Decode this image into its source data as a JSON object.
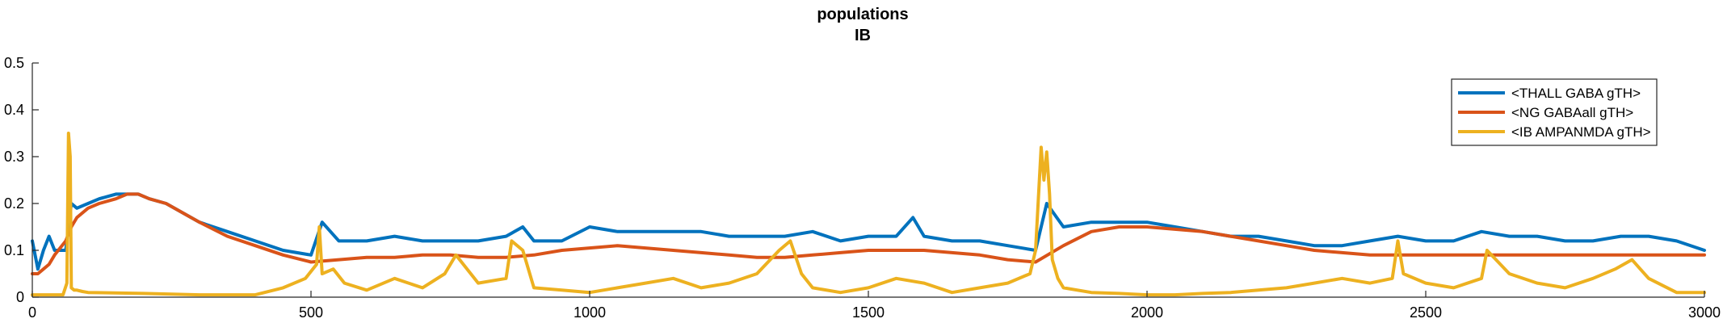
{
  "chart_data": {
    "type": "line",
    "title": "populations",
    "subtitle": "IB",
    "xlabel": "",
    "ylabel": "",
    "xlim": [
      0,
      3000
    ],
    "ylim": [
      0,
      0.5
    ],
    "xticks": [
      0,
      500,
      1000,
      1500,
      2000,
      2500,
      3000
    ],
    "xtick_labels": [
      "0",
      "500",
      "1000",
      "1500",
      "2000",
      "2500",
      "3000"
    ],
    "yticks": [
      0,
      0.1,
      0.2,
      0.3,
      0.4,
      0.5
    ],
    "ytick_labels": [
      "0",
      "0.1",
      "0.2",
      "0.3",
      "0.4",
      "0.5"
    ],
    "grid": false,
    "legend_position": "top-right",
    "series": [
      {
        "name": "<THALL GABA gTH>",
        "color": "#0072BD",
        "x": [
          0,
          10,
          20,
          30,
          40,
          60,
          70,
          80,
          100,
          120,
          150,
          170,
          190,
          210,
          240,
          270,
          300,
          350,
          400,
          450,
          500,
          520,
          550,
          600,
          650,
          700,
          750,
          800,
          850,
          880,
          900,
          950,
          1000,
          1050,
          1100,
          1150,
          1200,
          1250,
          1300,
          1350,
          1400,
          1450,
          1500,
          1550,
          1580,
          1600,
          1650,
          1700,
          1750,
          1800,
          1820,
          1850,
          1900,
          1950,
          2000,
          2050,
          2100,
          2150,
          2200,
          2250,
          2300,
          2350,
          2400,
          2450,
          2500,
          2550,
          2600,
          2650,
          2700,
          2750,
          2800,
          2850,
          2900,
          2950,
          3000
        ],
        "y": [
          0.12,
          0.06,
          0.1,
          0.13,
          0.1,
          0.1,
          0.2,
          0.19,
          0.2,
          0.21,
          0.22,
          0.22,
          0.22,
          0.21,
          0.2,
          0.18,
          0.16,
          0.14,
          0.12,
          0.1,
          0.09,
          0.16,
          0.12,
          0.12,
          0.13,
          0.12,
          0.12,
          0.12,
          0.13,
          0.15,
          0.12,
          0.12,
          0.15,
          0.14,
          0.14,
          0.14,
          0.14,
          0.13,
          0.13,
          0.13,
          0.14,
          0.12,
          0.13,
          0.13,
          0.17,
          0.13,
          0.12,
          0.12,
          0.11,
          0.1,
          0.2,
          0.15,
          0.16,
          0.16,
          0.16,
          0.15,
          0.14,
          0.13,
          0.13,
          0.12,
          0.11,
          0.11,
          0.12,
          0.13,
          0.12,
          0.12,
          0.14,
          0.13,
          0.13,
          0.12,
          0.12,
          0.13,
          0.13,
          0.12,
          0.1
        ]
      },
      {
        "name": "<NG GABAall gTH>",
        "color": "#D95319",
        "x": [
          0,
          10,
          20,
          30,
          40,
          60,
          70,
          80,
          100,
          120,
          150,
          170,
          190,
          210,
          240,
          270,
          300,
          350,
          400,
          450,
          500,
          550,
          600,
          650,
          700,
          750,
          800,
          850,
          900,
          950,
          1000,
          1050,
          1100,
          1150,
          1200,
          1250,
          1300,
          1350,
          1400,
          1450,
          1500,
          1550,
          1600,
          1650,
          1700,
          1750,
          1800,
          1850,
          1900,
          1950,
          2000,
          2050,
          2100,
          2150,
          2200,
          2250,
          2300,
          2350,
          2400,
          2450,
          2500,
          2550,
          2600,
          2650,
          2700,
          2750,
          2800,
          2850,
          2900,
          2950,
          3000
        ],
        "y": [
          0.05,
          0.05,
          0.06,
          0.07,
          0.09,
          0.12,
          0.15,
          0.17,
          0.19,
          0.2,
          0.21,
          0.22,
          0.22,
          0.21,
          0.2,
          0.18,
          0.16,
          0.13,
          0.11,
          0.09,
          0.075,
          0.08,
          0.085,
          0.085,
          0.09,
          0.09,
          0.085,
          0.085,
          0.09,
          0.1,
          0.105,
          0.11,
          0.105,
          0.1,
          0.095,
          0.09,
          0.085,
          0.085,
          0.09,
          0.095,
          0.1,
          0.1,
          0.1,
          0.095,
          0.09,
          0.08,
          0.075,
          0.11,
          0.14,
          0.15,
          0.15,
          0.145,
          0.14,
          0.13,
          0.12,
          0.11,
          0.1,
          0.095,
          0.09,
          0.09,
          0.09,
          0.09,
          0.09,
          0.09,
          0.09,
          0.09,
          0.09,
          0.09,
          0.09,
          0.09,
          0.09
        ]
      },
      {
        "name": "<IB AMPANMDA gTH>",
        "color": "#EDB120",
        "x": [
          0,
          20,
          40,
          55,
          62,
          65,
          68,
          70,
          75,
          80,
          90,
          100,
          200,
          300,
          400,
          450,
          490,
          510,
          515,
          520,
          540,
          560,
          600,
          650,
          700,
          740,
          760,
          800,
          850,
          860,
          880,
          900,
          950,
          1000,
          1050,
          1100,
          1150,
          1200,
          1250,
          1300,
          1340,
          1360,
          1380,
          1400,
          1450,
          1500,
          1550,
          1600,
          1650,
          1700,
          1750,
          1790,
          1800,
          1810,
          1815,
          1820,
          1825,
          1830,
          1840,
          1850,
          1900,
          1950,
          2000,
          2050,
          2100,
          2150,
          2200,
          2250,
          2300,
          2350,
          2400,
          2440,
          2450,
          2460,
          2500,
          2550,
          2600,
          2610,
          2650,
          2700,
          2750,
          2800,
          2840,
          2870,
          2900,
          2950,
          3000
        ],
        "y": [
          0.005,
          0.005,
          0.005,
          0.005,
          0.03,
          0.35,
          0.3,
          0.02,
          0.015,
          0.015,
          0.012,
          0.01,
          0.008,
          0.005,
          0.005,
          0.02,
          0.04,
          0.07,
          0.15,
          0.05,
          0.06,
          0.03,
          0.015,
          0.04,
          0.02,
          0.05,
          0.09,
          0.03,
          0.04,
          0.12,
          0.1,
          0.02,
          0.015,
          0.01,
          0.02,
          0.03,
          0.04,
          0.02,
          0.03,
          0.05,
          0.1,
          0.12,
          0.05,
          0.02,
          0.01,
          0.02,
          0.04,
          0.03,
          0.01,
          0.02,
          0.03,
          0.05,
          0.1,
          0.32,
          0.25,
          0.31,
          0.22,
          0.08,
          0.04,
          0.02,
          0.01,
          0.008,
          0.005,
          0.005,
          0.008,
          0.01,
          0.015,
          0.02,
          0.03,
          0.04,
          0.03,
          0.04,
          0.12,
          0.05,
          0.03,
          0.02,
          0.04,
          0.1,
          0.05,
          0.03,
          0.02,
          0.04,
          0.06,
          0.08,
          0.04,
          0.01,
          0.01
        ]
      }
    ]
  }
}
